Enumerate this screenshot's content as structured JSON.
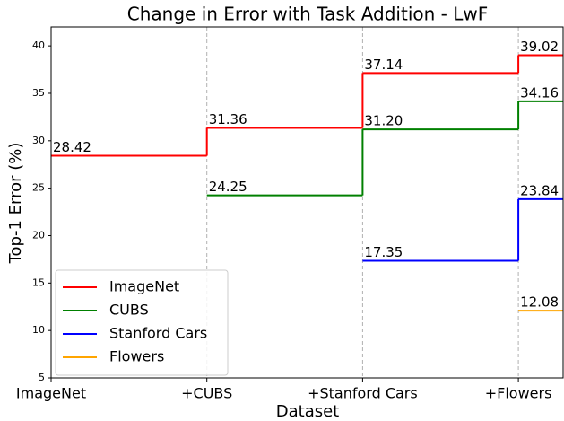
{
  "chart_data": {
    "type": "step",
    "title": "Change in Error with Task Addition - LwF",
    "x_label": "Dataset",
    "y_label": "Top-1 Error (%)",
    "categories": [
      "ImageNet",
      "+CUBS",
      "+Stanford Cars",
      "+Flowers"
    ],
    "series": [
      {
        "name": "ImageNet",
        "color": "#ff0000",
        "values": [
          28.42,
          31.36,
          37.14,
          39.02
        ],
        "value_labels": [
          "28.42",
          "31.36",
          "37.14",
          "39.02"
        ]
      },
      {
        "name": "CUBS",
        "color": "#008000",
        "values": [
          null,
          24.25,
          31.2,
          34.16
        ],
        "value_labels": [
          null,
          "24.25",
          "31.20",
          "34.16"
        ]
      },
      {
        "name": "Stanford Cars",
        "color": "#0000ff",
        "values": [
          null,
          null,
          17.35,
          23.84
        ],
        "value_labels": [
          null,
          null,
          "17.35",
          "23.84"
        ]
      },
      {
        "name": "Flowers",
        "color": "#ffa500",
        "values": [
          null,
          null,
          null,
          12.08
        ],
        "value_labels": [
          null,
          null,
          null,
          "12.08"
        ]
      }
    ],
    "ylim": [
      5,
      42
    ],
    "yticks": [
      5,
      10,
      15,
      20,
      25,
      30,
      35,
      40
    ],
    "grid": "x",
    "legend": "lower left"
  }
}
